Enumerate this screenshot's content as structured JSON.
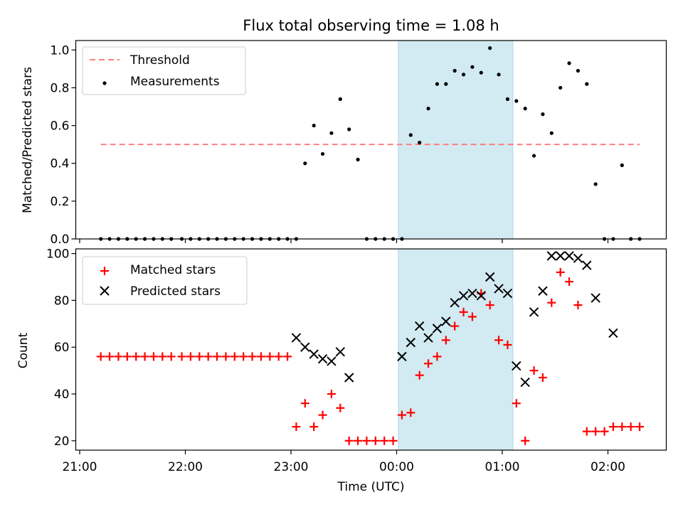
{
  "chart_data": [
    {
      "type": "scatter",
      "title": "Flux total observing time = 1.08 h",
      "xlabel": "",
      "ylabel": "Matched/Predicted stars",
      "ylim": [
        0.0,
        1.05
      ],
      "yticks": [
        "0.0",
        "0.2",
        "0.4",
        "0.6",
        "0.8",
        "1.0"
      ],
      "highlight_span": {
        "from": "00:01",
        "to": "01:06",
        "color": "#add8e6"
      },
      "legend_position": "upper-left",
      "threshold": {
        "name": "Threshold",
        "value": 0.5,
        "from": "21:12",
        "to": "02:18",
        "color": "#ff7f7f"
      },
      "series": [
        {
          "name": "Measurements",
          "color": "#000000",
          "x": [
            "21:12",
            "21:17",
            "21:22",
            "21:27",
            "21:32",
            "21:37",
            "21:42",
            "21:47",
            "21:52",
            "21:58",
            "22:03",
            "22:08",
            "22:13",
            "22:18",
            "22:23",
            "22:28",
            "22:33",
            "22:38",
            "22:43",
            "22:48",
            "22:53",
            "22:58",
            "23:03",
            "23:08",
            "23:13",
            "23:18",
            "23:23",
            "23:28",
            "23:33",
            "23:38",
            "23:43",
            "23:48",
            "23:53",
            "23:58",
            "00:03",
            "00:08",
            "00:13",
            "00:18",
            "00:23",
            "00:28",
            "00:33",
            "00:38",
            "00:43",
            "00:48",
            "00:53",
            "00:58",
            "01:03",
            "01:08",
            "01:13",
            "01:18",
            "01:23",
            "01:28",
            "01:33",
            "01:38",
            "01:43",
            "01:48",
            "01:53",
            "01:58",
            "02:03",
            "02:08",
            "02:13",
            "02:18"
          ],
          "y": [
            0,
            0,
            0,
            0,
            0,
            0,
            0,
            0,
            0,
            0,
            0,
            0,
            0,
            0,
            0,
            0,
            0,
            0,
            0,
            0,
            0,
            0,
            0,
            0.4,
            0.6,
            0.45,
            0.56,
            0.74,
            0.58,
            0.42,
            0,
            0,
            0,
            0,
            0,
            0.55,
            0.51,
            0.69,
            0.82,
            0.82,
            0.89,
            0.87,
            0.91,
            0.88,
            1.01,
            0.87,
            0.74,
            0.73,
            0.69,
            0.44,
            0.66,
            0.56,
            0.8,
            0.93,
            0.89,
            0.82,
            0.29,
            0,
            0,
            0.39,
            0,
            0
          ]
        }
      ]
    },
    {
      "type": "scatter",
      "title": "",
      "xlabel": "Time (UTC)",
      "ylabel": "Count",
      "ylim": [
        16,
        102
      ],
      "yticks": [
        "20",
        "40",
        "60",
        "80",
        "100"
      ],
      "xticks": [
        "21:00",
        "22:00",
        "23:00",
        "00:00",
        "01:00",
        "02:00"
      ],
      "highlight_span": {
        "from": "00:01",
        "to": "01:06",
        "color": "#add8e6"
      },
      "legend_position": "upper-left",
      "series": [
        {
          "name": "Matched stars",
          "marker": "+",
          "color": "#ff0000",
          "x": [
            "21:12",
            "21:17",
            "21:22",
            "21:27",
            "21:32",
            "21:37",
            "21:42",
            "21:47",
            "21:52",
            "21:58",
            "22:03",
            "22:08",
            "22:13",
            "22:18",
            "22:23",
            "22:28",
            "22:33",
            "22:38",
            "22:43",
            "22:48",
            "22:53",
            "22:58",
            "23:03",
            "23:08",
            "23:13",
            "23:18",
            "23:23",
            "23:28",
            "23:33",
            "23:38",
            "23:43",
            "23:48",
            "23:53",
            "23:58",
            "00:03",
            "00:08",
            "00:13",
            "00:18",
            "00:23",
            "00:28",
            "00:33",
            "00:38",
            "00:43",
            "00:48",
            "00:53",
            "00:58",
            "01:03",
            "01:08",
            "01:13",
            "01:18",
            "01:23",
            "01:28",
            "01:33",
            "01:38",
            "01:43",
            "01:48",
            "01:53",
            "01:58",
            "02:03",
            "02:08",
            "02:13",
            "02:18"
          ],
          "y": [
            56,
            56,
            56,
            56,
            56,
            56,
            56,
            56,
            56,
            56,
            56,
            56,
            56,
            56,
            56,
            56,
            56,
            56,
            56,
            56,
            56,
            56,
            26,
            36,
            26,
            31,
            40,
            34,
            20,
            20,
            20,
            20,
            20,
            20,
            31,
            32,
            48,
            53,
            56,
            63,
            69,
            75,
            73,
            83,
            78,
            63,
            61,
            36,
            20,
            50,
            47,
            79,
            92,
            88,
            78,
            24,
            24,
            24,
            26,
            26,
            26,
            26
          ]
        },
        {
          "name": "Predicted stars",
          "marker": "x",
          "color": "#000000",
          "x": [
            "23:03",
            "23:08",
            "23:13",
            "23:18",
            "23:23",
            "23:28",
            "23:33",
            "00:03",
            "00:08",
            "00:13",
            "00:18",
            "00:23",
            "00:28",
            "00:33",
            "00:38",
            "00:43",
            "00:48",
            "00:53",
            "00:58",
            "01:03",
            "01:08",
            "01:13",
            "01:18",
            "01:23",
            "01:28",
            "01:33",
            "01:38",
            "01:43",
            "01:48",
            "01:53",
            "02:03"
          ],
          "y": [
            64,
            60,
            57,
            55,
            54,
            58,
            47,
            56,
            62,
            69,
            64,
            68,
            71,
            79,
            82,
            83,
            82,
            90,
            85,
            83,
            52,
            45,
            75,
            84,
            99,
            99,
            99,
            98,
            95,
            81,
            66
          ]
        }
      ]
    }
  ]
}
